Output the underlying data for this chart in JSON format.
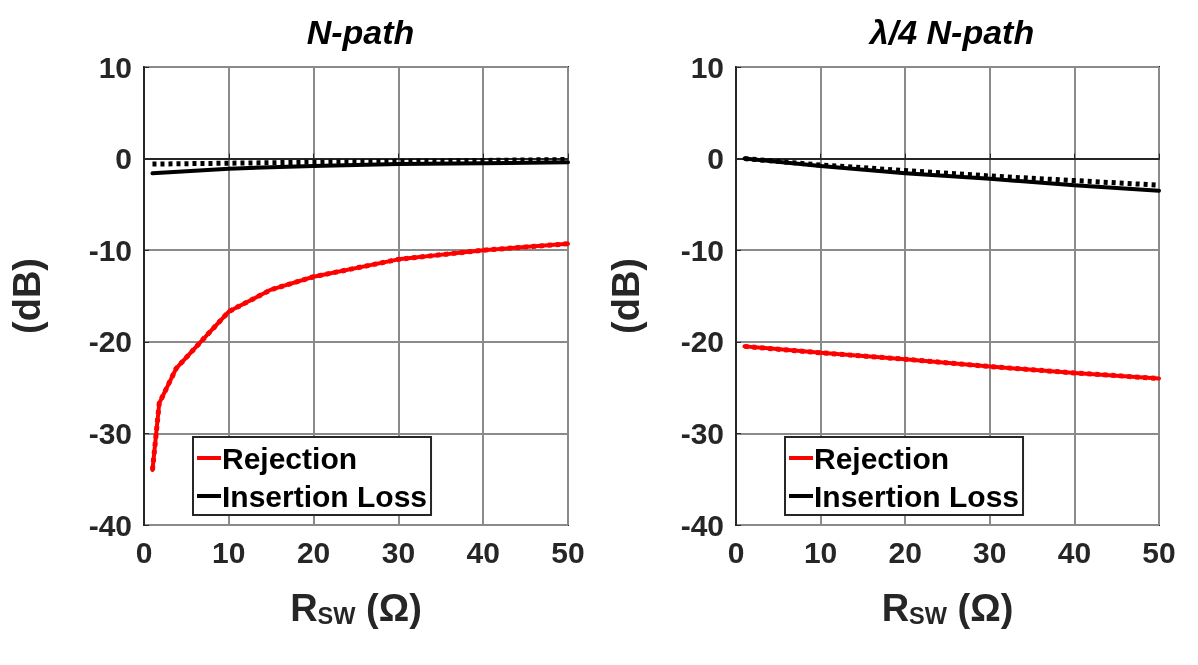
{
  "chart_data": [
    {
      "type": "line",
      "title": "N-path",
      "xlabel": "R$_{SW}$ (Ω)",
      "ylabel": "(dB)",
      "xlim": [
        0,
        50
      ],
      "xticks": [
        0,
        10,
        20,
        30,
        40,
        50
      ],
      "ylim": [
        -40,
        10
      ],
      "yticks": [
        -40,
        -30,
        -20,
        -10,
        0,
        10
      ],
      "grid": true,
      "legend": "bottom",
      "series": [
        {
          "name": "Rejection",
          "color": "#ff0000",
          "line_style": "solid",
          "x": [
            1,
            1.8,
            3.8,
            6.9,
            10,
            15,
            20,
            30,
            40,
            50
          ],
          "values": [
            -34,
            -26.7,
            -22.9,
            -19.8,
            -16.7,
            -14.3,
            -12.9,
            -11,
            -10,
            -9.3
          ]
        },
        {
          "name": "Insertion Loss",
          "color": "#000000",
          "line_style": "solid",
          "x": [
            1,
            10,
            20,
            30,
            40,
            50
          ],
          "values": [
            -1.6,
            -1.1,
            -0.8,
            -0.6,
            -0.5,
            -0.4
          ]
        },
        {
          "color": "#ff0000",
          "line_style": "dotted",
          "x": [
            1,
            1.8,
            3.8,
            6.9,
            10,
            15,
            20,
            30,
            40,
            50
          ],
          "values": [
            -34,
            -26.7,
            -22.9,
            -19.8,
            -16.7,
            -14.3,
            -12.9,
            -11,
            -10,
            -9.3
          ]
        },
        {
          "color": "#000000",
          "line_style": "dotted",
          "x": [
            1,
            10,
            20,
            30,
            40,
            50
          ],
          "values": [
            -0.6,
            -0.5,
            -0.4,
            -0.3,
            -0.2,
            -0.1
          ]
        }
      ]
    },
    {
      "type": "line",
      "title": "λ/4 N-path",
      "xlabel": "R$_{SW}$ (Ω)",
      "ylabel": "(dB)",
      "xlim": [
        0,
        50
      ],
      "xticks": [
        0,
        10,
        20,
        30,
        40,
        50
      ],
      "ylim": [
        -40,
        10
      ],
      "yticks": [
        -40,
        -30,
        -20,
        -10,
        0,
        10
      ],
      "grid": true,
      "legend": "bottom",
      "series": [
        {
          "name": "Rejection",
          "color": "#ff0000",
          "line_style": "solid",
          "x": [
            1,
            10,
            20,
            30,
            40,
            50
          ],
          "values": [
            -20.5,
            -21.2,
            -21.9,
            -22.7,
            -23.4,
            -24
          ]
        },
        {
          "name": "Insertion Loss",
          "color": "#000000",
          "line_style": "solid",
          "x": [
            1,
            10,
            20,
            30,
            40,
            50
          ],
          "values": [
            0,
            -0.8,
            -1.6,
            -2.2,
            -2.9,
            -3.5
          ]
        },
        {
          "color": "#ff0000",
          "line_style": "dotted",
          "x": [
            1,
            10,
            20,
            30,
            40,
            50
          ],
          "values": [
            -20.5,
            -21.2,
            -21.9,
            -22.7,
            -23.4,
            -24
          ]
        },
        {
          "color": "#000000",
          "line_style": "dotted",
          "x": [
            1,
            10,
            20,
            30,
            40,
            50
          ],
          "values": [
            0,
            -0.7,
            -1.3,
            -1.9,
            -2.4,
            -2.9
          ]
        }
      ]
    }
  ]
}
